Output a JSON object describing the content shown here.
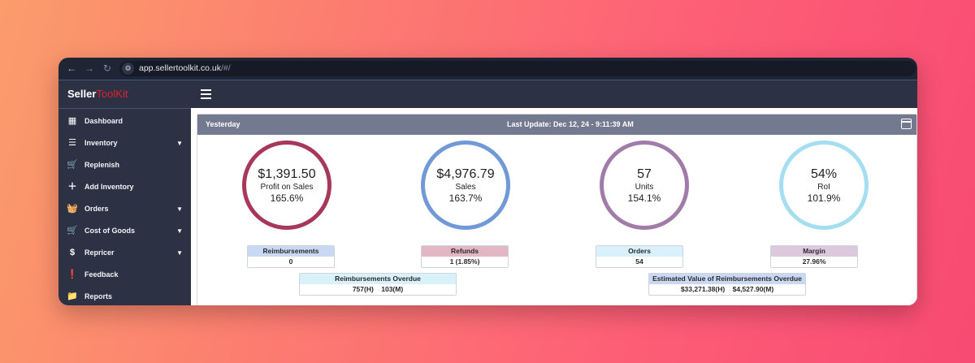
{
  "browser": {
    "url_host": "app.sellertoolkit.co.uk",
    "url_path": "/#/"
  },
  "brand": {
    "part1": "Seller",
    "part2": "ToolKit",
    "accent_color": "#e0202e"
  },
  "sidebar": {
    "items": [
      {
        "label": "Dashboard"
      },
      {
        "label": "Inventory"
      },
      {
        "label": "Replenish"
      },
      {
        "label": "Add Inventory"
      },
      {
        "label": "Orders"
      },
      {
        "label": "Cost of Goods"
      },
      {
        "label": "Repricer"
      },
      {
        "label": "Feedback"
      },
      {
        "label": "Reports"
      }
    ]
  },
  "panel": {
    "period": "Yesterday",
    "last_update": "Last Update: Dec 12, 24 - 9:11:39 AM"
  },
  "metrics": [
    {
      "value": "$1,391.50",
      "label": "Profit on Sales",
      "pct": "165.6%",
      "color": "#a7385a"
    },
    {
      "value": "$4,976.79",
      "label": "Sales",
      "pct": "163.7%",
      "color": "#7199d8"
    },
    {
      "value": "57",
      "label": "Units",
      "pct": "154.1%",
      "color": "#a27ca8"
    },
    {
      "value": "54%",
      "label": "RoI",
      "pct": "101.9%",
      "color": "#a5def0"
    }
  ],
  "stats": [
    {
      "label": "Reimbursements",
      "value": "0",
      "color": "#c9d9f3"
    },
    {
      "label": "Refunds",
      "value": "1 (1.85%)",
      "color": "#e3b6c4"
    },
    {
      "label": "Orders",
      "value": "54",
      "color": "#d9f1fa"
    },
    {
      "label": "Margin",
      "value": "27.96%",
      "color": "#dcc9dd"
    }
  ],
  "overdue": [
    {
      "label": "Reimbursements Overdue",
      "value": "757(H)    103(M)",
      "color": "#d9f1fa"
    },
    {
      "label": "Estimated Value of Reimbursements Overdue",
      "value": "$33,271.38(H)    $4,527.90(M)",
      "color": "#c9d9f3"
    }
  ]
}
